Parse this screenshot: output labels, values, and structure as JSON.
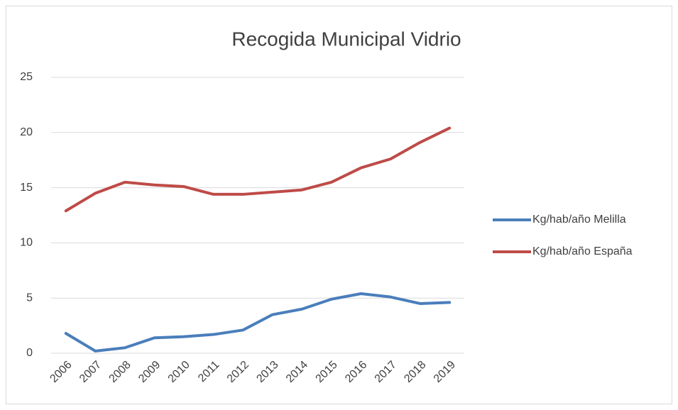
{
  "chart_data": {
    "type": "line",
    "title": "Recogida Municipal Vidrio",
    "categories": [
      "2006",
      "2007",
      "2008",
      "2009",
      "2010",
      "2011",
      "2012",
      "2013",
      "2014",
      "2015",
      "2016",
      "2017",
      "2018",
      "2019"
    ],
    "series": [
      {
        "name": "Kg/hab/año Melilla",
        "color": "#4a7ebb",
        "values": [
          1.8,
          0.2,
          0.5,
          1.4,
          1.5,
          1.7,
          2.1,
          3.5,
          4.0,
          4.9,
          5.4,
          5.1,
          4.5,
          4.6
        ]
      },
      {
        "name": "Kg/hab/año España",
        "color": "#be4b48",
        "values": [
          12.9,
          14.5,
          15.5,
          15.25,
          15.1,
          14.4,
          14.4,
          14.6,
          14.8,
          15.5,
          16.8,
          17.6,
          19.1,
          20.4
        ]
      }
    ],
    "ylim": [
      0,
      25
    ],
    "yticks": [
      0,
      5,
      10,
      15,
      20,
      25
    ],
    "grid": true,
    "legend": "right"
  }
}
